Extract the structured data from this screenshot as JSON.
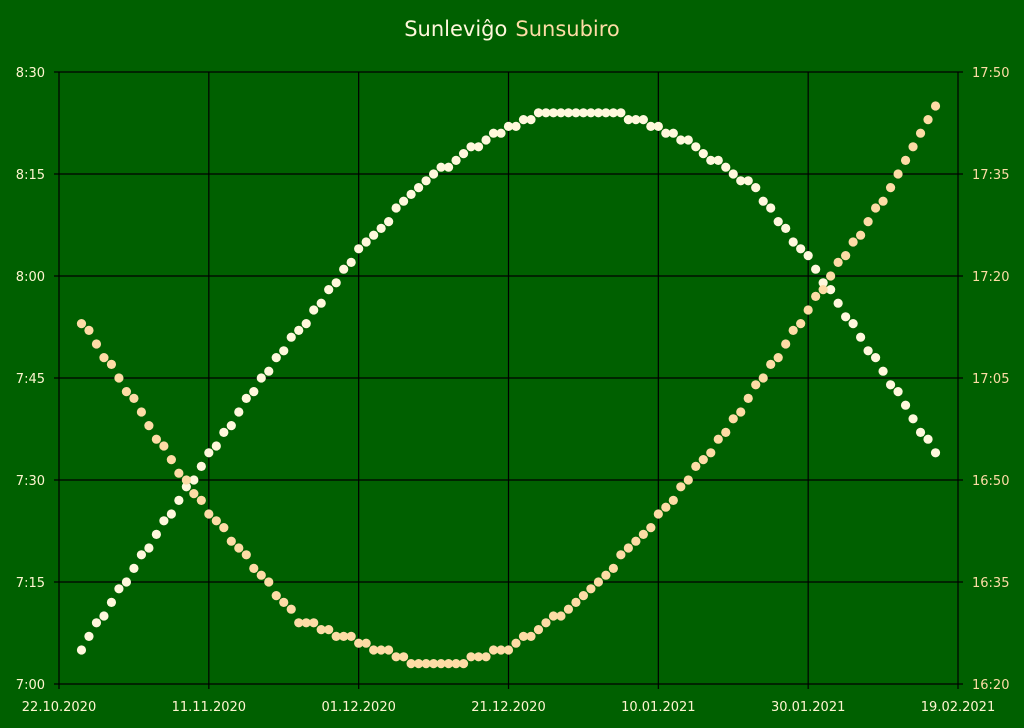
{
  "chart_data": {
    "type": "scatter",
    "title_parts": [
      "Sunleviĝo",
      "Sunsubiro"
    ],
    "x_start_date": "22.10.2020",
    "x_first_point_day": 3,
    "x_unit": "days since 22.10.2020",
    "x_ticks": [
      "22.10.2020",
      "11.11.2020",
      "01.12.2020",
      "21.12.2020",
      "10.01.2021",
      "30.01.2021",
      "19.02.2021"
    ],
    "x_tick_step_days": 20,
    "xlim": [
      0,
      120
    ],
    "left_axis": {
      "ticks": [
        "7:00",
        "7:15",
        "7:30",
        "7:45",
        "8:00",
        "8:15",
        "8:30"
      ],
      "base": "7:00",
      "ylim_minutes": [
        0,
        90
      ]
    },
    "right_axis": {
      "ticks": [
        "16:20",
        "16:35",
        "16:50",
        "17:05",
        "17:20",
        "17:35",
        "17:50"
      ],
      "base": "16:20",
      "ylim_minutes": [
        0,
        90
      ]
    },
    "grid": true,
    "series": [
      {
        "name": "Sunleviĝo",
        "axis": "left",
        "color": "#fff8dc",
        "unit": "minutes after 7:00",
        "values": [
          5,
          7,
          9,
          10,
          12,
          14,
          15,
          17,
          19,
          20,
          22,
          24,
          25,
          27,
          29,
          30,
          32,
          34,
          35,
          37,
          38,
          40,
          42,
          43,
          45,
          46,
          48,
          49,
          51,
          52,
          53,
          55,
          56,
          58,
          59,
          61,
          62,
          64,
          65,
          66,
          67,
          68,
          70,
          71,
          72,
          73,
          74,
          75,
          76,
          76,
          77,
          78,
          79,
          79,
          80,
          81,
          81,
          82,
          82,
          83,
          83,
          84,
          84,
          84,
          84,
          84,
          84,
          84,
          84,
          84,
          84,
          84,
          84,
          83,
          83,
          83,
          82,
          82,
          81,
          81,
          80,
          80,
          79,
          78,
          77,
          77,
          76,
          75,
          74,
          74,
          73,
          71,
          70,
          68,
          67,
          65,
          64,
          63,
          61,
          59,
          58,
          56,
          54,
          53,
          51,
          49,
          48,
          46,
          44,
          43,
          41,
          39,
          37,
          36,
          34
        ]
      },
      {
        "name": "Sunsubiro",
        "axis": "right",
        "color": "#fddca5",
        "unit": "minutes after 16:20",
        "values": [
          53,
          52,
          50,
          48,
          47,
          45,
          43,
          42,
          40,
          38,
          36,
          35,
          33,
          31,
          30,
          28,
          27,
          25,
          24,
          23,
          21,
          20,
          19,
          17,
          16,
          15,
          13,
          12,
          11,
          9,
          9,
          9,
          8,
          8,
          7,
          7,
          7,
          6,
          6,
          5,
          5,
          5,
          4,
          4,
          3,
          3,
          3,
          3,
          3,
          3,
          3,
          3,
          4,
          4,
          4,
          5,
          5,
          5,
          6,
          7,
          7,
          8,
          9,
          10,
          10,
          11,
          12,
          13,
          14,
          15,
          16,
          17,
          19,
          20,
          21,
          22,
          23,
          25,
          26,
          27,
          29,
          30,
          32,
          33,
          34,
          36,
          37,
          39,
          40,
          42,
          44,
          45,
          47,
          48,
          50,
          52,
          53,
          55,
          57,
          58,
          60,
          62,
          63,
          65,
          66,
          68,
          70,
          71,
          73,
          75,
          77,
          79,
          81,
          83,
          85
        ]
      }
    ],
    "colors": {
      "background": "#006000",
      "grid": "#000000",
      "left_ticks": "#fff5d0",
      "right_ticks": "#fddca5"
    }
  }
}
